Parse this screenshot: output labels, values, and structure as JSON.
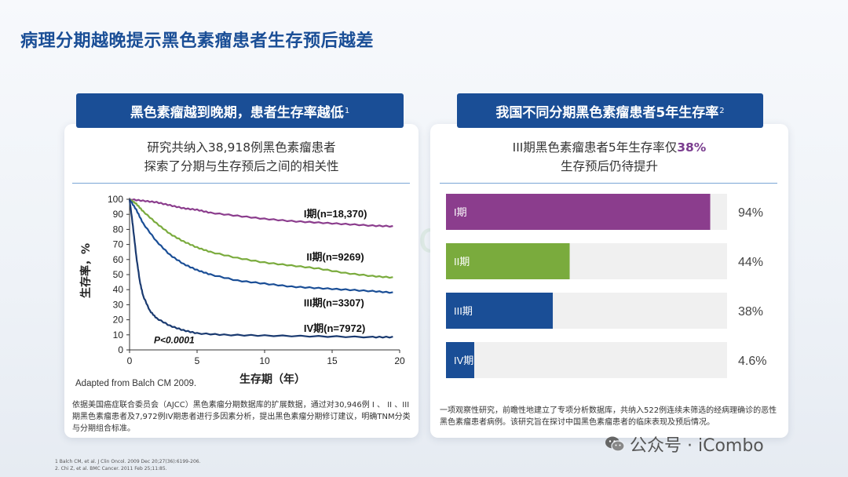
{
  "page": {
    "title": "病理分期越晚提示黑色素瘤患者生存预后越差"
  },
  "left_panel": {
    "tab_label": "黑色素瘤越到晚期，患者生存率越低",
    "tab_sup": "1",
    "subtitle_line1": "研究共纳入38,918例黑色素瘤患者",
    "subtitle_line2": "探索了分期与生存预后之间的相关性",
    "source_note": "Adapted from Balch CM 2009.",
    "footnote": "依据美国癌症联合委员会（AJCC）黑色素瘤分期数据库的扩展数据，通过对30,946例 I 、 II 、III期黑色素瘤患者及7,972例IV期患者进行多因素分析，提出黑色素瘤分期修订建议，明确TNM分类与分期组合标准。"
  },
  "right_panel": {
    "tab_label": "我国不同分期黑色素瘤患者5年生存率",
    "tab_sup": "2",
    "subtitle_line1_prefix": "III期黑色素瘤患者5年生存率仅",
    "subtitle_line1_highlight": "38%",
    "subtitle_line2": "生存预后仍待提升",
    "footnote": "一项观察性研究，前瞻性地建立了专项分析数据库，共纳入522例连续未筛选的经病理确诊的恶性黑色素瘤患者病例。该研究旨在探讨中国黑色素瘤患者的临床表现及预后情况。"
  },
  "references": {
    "ref1": "1 Balch CM, et al. J Clin Oncol. 2009 Dec 20;27(36):6199-206.",
    "ref2": "2. Chi Z, et al. BMC Cancer. 2011 Feb 25;11:85."
  },
  "watermark": {
    "center": "公众号 · iCombo",
    "corner": "公众号 · iCombo"
  },
  "chart_data": [
    {
      "type": "line",
      "xlabel": "生存期（年）",
      "ylabel": "生存率，%",
      "xlim": [
        0,
        20
      ],
      "ylim": [
        0,
        100
      ],
      "xticks": [
        0,
        5,
        10,
        15,
        20
      ],
      "yticks": [
        0,
        10,
        20,
        30,
        40,
        50,
        60,
        70,
        80,
        90,
        100
      ],
      "annotation": "P<0.0001",
      "grid": false,
      "series": [
        {
          "name": "I期(n=18,370)",
          "color": "#8b3d8d",
          "x": [
            0,
            1,
            2,
            3,
            4,
            5,
            6,
            8,
            10,
            12,
            14,
            16,
            18,
            19.5
          ],
          "y": [
            100,
            99,
            98,
            96,
            94,
            93,
            91,
            89,
            87,
            85.5,
            84.5,
            83.5,
            82.5,
            82
          ]
        },
        {
          "name": "II期(n=9269)",
          "color": "#7aab3d",
          "x": [
            0,
            0.5,
            1,
            2,
            3,
            4,
            5,
            6,
            8,
            10,
            12,
            14,
            16,
            18,
            19.5
          ],
          "y": [
            100,
            97,
            92,
            84,
            77,
            72,
            68,
            65,
            61,
            58,
            56,
            54,
            51,
            49,
            48
          ]
        },
        {
          "name": "III期(n=3307)",
          "color": "#1a4e96",
          "x": [
            0,
            0.5,
            1,
            2,
            3,
            4,
            5,
            6,
            8,
            10,
            12,
            14,
            16,
            18,
            19.5
          ],
          "y": [
            100,
            93,
            84,
            72,
            63,
            57,
            53,
            50,
            46,
            44,
            42,
            41,
            40,
            39,
            38
          ]
        },
        {
          "name": "IV期(n=7972)",
          "color": "#1a3a70",
          "x": [
            0,
            0.25,
            0.5,
            0.75,
            1,
            1.5,
            2,
            3,
            4,
            5,
            7,
            10,
            14,
            18,
            19.5
          ],
          "y": [
            100,
            82,
            62,
            46,
            36,
            26,
            21,
            16,
            13,
            11,
            10,
            9.5,
            9,
            8.5,
            8.5
          ]
        }
      ]
    },
    {
      "type": "bar",
      "orientation": "horizontal",
      "categories": [
        "I期",
        "II期",
        "III期",
        "IV期"
      ],
      "values": [
        94,
        44,
        38,
        4.6
      ],
      "value_labels": [
        "94%",
        "44%",
        "38%",
        "4.6%"
      ],
      "colors": [
        "#8b3d8d",
        "#7aab3d",
        "#1a4e96",
        "#1a4e96"
      ],
      "track_color": "#f0f0f0",
      "xlim": [
        0,
        100
      ]
    }
  ]
}
